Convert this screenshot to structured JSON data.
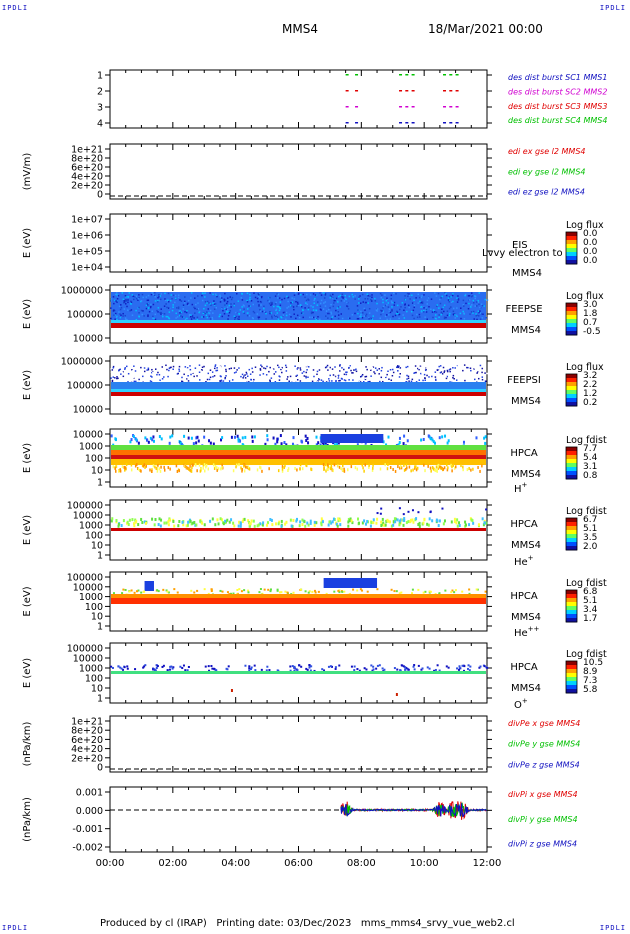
{
  "header": {
    "corner_label": "IPDLI",
    "title": "MMS4",
    "datetime": "18/Mar/2021 00:00"
  },
  "footer": {
    "produced_by": "Produced by cl (IRAP)",
    "printing_date": "Printing date: 03/Dec/2023",
    "script": "mms_mms4_srvy_vue_web2.cl"
  },
  "chart_data": {
    "type": "stacked_timeseries",
    "time_axis": {
      "ticks": [
        "00:00",
        "02:00",
        "04:00",
        "06:00",
        "08:00",
        "10:00",
        "12:00"
      ],
      "range_hours": [
        0,
        12
      ]
    },
    "panels": [
      {
        "id": "des-dist",
        "type": "scatter",
        "yticks": [
          "1",
          "2",
          "3",
          "4"
        ],
        "ylim": [
          0.6,
          4.4
        ],
        "legend": [
          "des dist burst SC1 MMS1",
          "des dist burst SC2 MMS2",
          "des dist burst SC3 MMS3",
          "des dist burst SC4 MMS4"
        ],
        "colors": [
          "#1010c0",
          "#d000d0",
          "#e00000",
          "#00c000"
        ],
        "series": [
          {
            "name": "SC1 MMS1",
            "level": 1,
            "t": [
              7.5,
              7.8,
              9.2,
              9.4,
              9.6,
              10.6,
              10.8,
              11.0
            ]
          },
          {
            "name": "SC2 MMS2",
            "level": 2,
            "t": [
              7.5,
              7.8,
              9.2,
              9.4,
              9.6,
              10.6,
              10.8,
              11.0
            ]
          },
          {
            "name": "SC3 MMS3",
            "level": 3,
            "t": [
              7.5,
              7.8,
              9.2,
              9.4,
              9.6,
              10.6,
              10.8,
              11.0
            ]
          },
          {
            "name": "SC4 MMS4",
            "level": 4,
            "t": [
              7.5,
              7.8,
              9.2,
              9.4,
              9.6,
              10.6,
              10.8,
              11.0
            ]
          }
        ]
      },
      {
        "id": "edi-e",
        "type": "line",
        "ylabel": "(mV/m)",
        "yticks": [
          "1e+21",
          "8e+20",
          "6e+20",
          "4e+20",
          "2e+20",
          "0"
        ],
        "ylim": [
          0,
          1e+21
        ],
        "legend": [
          "edi ex gse l2 MMS4",
          "edi ey gse l2 MMS4",
          "edi ez gse l2 MMS4"
        ],
        "colors": [
          "#e00000",
          "#00c000",
          "#1010c0"
        ],
        "series": []
      },
      {
        "id": "eis",
        "type": "spectrogram",
        "ylabel": "E (eV)",
        "yticks": [
          "1e+07",
          "1e+06",
          "1e+05",
          "1e+04"
        ],
        "ylim": [
          10000.0,
          10000000.0
        ],
        "scale": "log",
        "label": [
          "EIS",
          "MMS4"
        ],
        "overlay_text": "Lvvy electron to",
        "colorbar": {
          "title": "Log flux",
          "ticks": [
            "0.0",
            "0.0",
            "0.0",
            "0.0"
          ]
        }
      },
      {
        "id": "feepse",
        "type": "spectrogram",
        "ylabel": "E (eV)",
        "yticks": [
          "1000000",
          "100000",
          "10000"
        ],
        "ylim": [
          10000.0,
          1000000.0
        ],
        "scale": "log",
        "label": [
          "FEEPSE",
          "MMS4"
        ],
        "colorbar": {
          "title": "Log flux",
          "ticks": [
            "3.0",
            "1.8",
            "0.7",
            "-0.5"
          ]
        }
      },
      {
        "id": "feepsi",
        "type": "spectrogram",
        "ylabel": "E (eV)",
        "yticks": [
          "1000000",
          "100000",
          "10000"
        ],
        "ylim": [
          10000.0,
          1000000.0
        ],
        "scale": "log",
        "label": [
          "FEEPSI",
          "MMS4"
        ],
        "colorbar": {
          "title": "Log flux",
          "ticks": [
            "3.2",
            "2.2",
            "1.2",
            "0.2"
          ]
        }
      },
      {
        "id": "hpca-h",
        "type": "spectrogram",
        "ylabel": "E (eV)",
        "yticks": [
          "10000",
          "1000",
          "100",
          "10",
          "1"
        ],
        "ylim": [
          1,
          40000
        ],
        "scale": "log",
        "label": [
          "HPCA",
          "MMS4"
        ],
        "species": "H",
        "charge": "+",
        "colorbar": {
          "title": "Log fdist",
          "ticks": [
            "7.7",
            "5.4",
            "3.1",
            "0.8"
          ]
        }
      },
      {
        "id": "hpca-he",
        "type": "spectrogram",
        "ylabel": "E (eV)",
        "yticks": [
          "100000",
          "10000",
          "1000",
          "100",
          "10",
          "1"
        ],
        "ylim": [
          1,
          100000
        ],
        "scale": "log",
        "label": [
          "HPCA",
          "MMS4"
        ],
        "species": "He",
        "charge": "+",
        "colorbar": {
          "title": "Log fdist",
          "ticks": [
            "6.7",
            "5.1",
            "3.5",
            "2.0"
          ]
        }
      },
      {
        "id": "hpca-he2",
        "type": "spectrogram",
        "ylabel": "E (eV)",
        "yticks": [
          "100000",
          "10000",
          "1000",
          "100",
          "10",
          "1"
        ],
        "ylim": [
          1,
          100000
        ],
        "scale": "log",
        "label": [
          "HPCA",
          "MMS4"
        ],
        "species": "He",
        "charge": "++",
        "colorbar": {
          "title": "Log fdist",
          "ticks": [
            "6.8",
            "5.1",
            "3.4",
            "1.7"
          ]
        }
      },
      {
        "id": "hpca-o",
        "type": "spectrogram",
        "ylabel": "E (eV)",
        "yticks": [
          "100000",
          "10000",
          "1000",
          "100",
          "10",
          "1"
        ],
        "ylim": [
          1,
          100000
        ],
        "scale": "log",
        "label": [
          "HPCA",
          "MMS4"
        ],
        "species": "O",
        "charge": "+",
        "colorbar": {
          "title": "Log fdist",
          "ticks": [
            "10.5",
            "8.9",
            "7.3",
            "5.8"
          ]
        }
      },
      {
        "id": "divpe",
        "type": "line",
        "ylabel": "(nPa/km)",
        "yticks": [
          "1e+21",
          "8e+20",
          "6e+20",
          "4e+20",
          "2e+20",
          "0"
        ],
        "ylim": [
          0,
          1e+21
        ],
        "legend": [
          "divPe x gse MMS4",
          "divPe y gse MMS4",
          "divPe z gse MMS4"
        ],
        "colors": [
          "#e00000",
          "#00c000",
          "#1010c0"
        ],
        "series": []
      },
      {
        "id": "divpi",
        "type": "line",
        "ylabel": "(nPa/km)",
        "yticks": [
          "0.001",
          "0.000",
          "-0.001",
          "-0.002"
        ],
        "ylim": [
          -0.0025,
          0.0013
        ],
        "legend": [
          "divPi x gse MMS4",
          "divPi y gse MMS4",
          "divPi z gse MMS4"
        ],
        "colors": [
          "#e00000",
          "#00c000",
          "#1010c0"
        ],
        "active_window_hours": [
          7.35,
          12.0
        ],
        "bursts_hours": [
          7.5,
          10.5,
          10.9,
          11.2
        ]
      }
    ]
  }
}
